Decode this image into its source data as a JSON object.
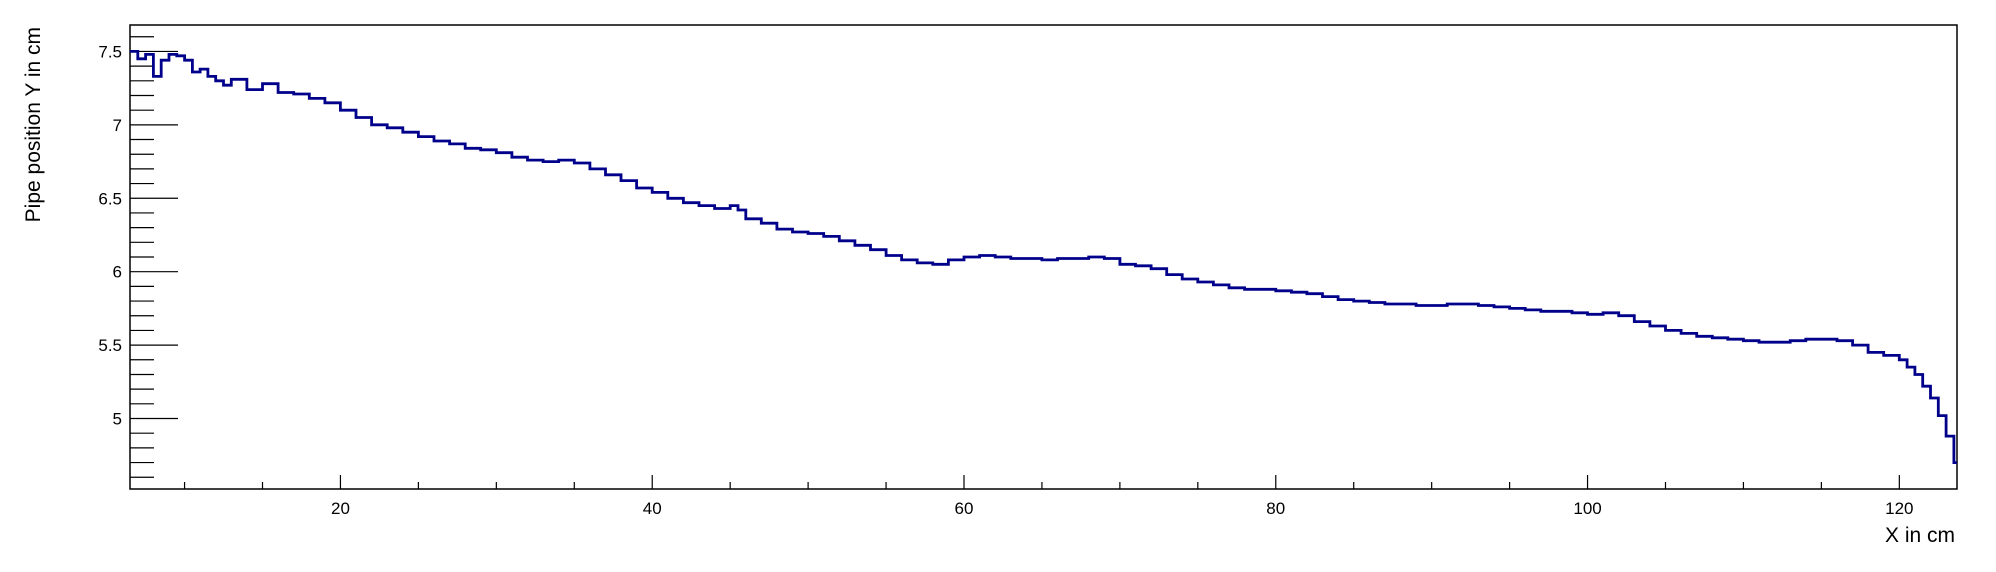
{
  "chart_data": {
    "type": "line",
    "style": "step",
    "title": "",
    "xlabel": "X in cm",
    "ylabel": "Pipe position Y in cm",
    "xlim": [
      6.5,
      123.7
    ],
    "ylim": [
      4.52,
      7.68
    ],
    "x_major_ticks": [
      20,
      40,
      60,
      80,
      100,
      120
    ],
    "x_minor_step": 5,
    "y_major_ticks": [
      5,
      5.5,
      6,
      6.5,
      7,
      7.5
    ],
    "y_minor_step": 0.1,
    "grid": false,
    "legend": "none",
    "line_color": "#00008b",
    "series": [
      {
        "x": [
          6.5,
          7.0,
          7.5,
          8.0,
          8.5,
          9.0,
          9.5,
          10.0,
          10.5,
          11.0,
          11.5,
          12.0,
          12.5,
          13.0,
          14.0,
          15.0,
          16.0,
          17.0,
          18.0,
          19.0,
          20.0,
          21.0,
          22.0,
          23.0,
          24.0,
          25.0,
          26.0,
          27.0,
          28.0,
          29.0,
          30.0,
          31.0,
          32.0,
          33.0,
          34.0,
          35.0,
          36.0,
          37.0,
          38.0,
          39.0,
          40.0,
          41.0,
          42.0,
          43.0,
          44.0,
          45.0,
          45.5,
          46.0,
          47.0,
          48.0,
          49.0,
          50.0,
          51.0,
          52.0,
          53.0,
          54.0,
          55.0,
          56.0,
          57.0,
          58.0,
          59.0,
          60.0,
          61.0,
          62.0,
          63.0,
          64.0,
          65.0,
          66.0,
          67.0,
          68.0,
          69.0,
          70.0,
          71.0,
          72.0,
          73.0,
          74.0,
          75.0,
          76.0,
          77.0,
          78.0,
          79.0,
          80.0,
          81.0,
          82.0,
          83.0,
          84.0,
          85.0,
          86.0,
          87.0,
          88.0,
          89.0,
          90.0,
          91.0,
          92.0,
          93.0,
          94.0,
          95.0,
          96.0,
          97.0,
          98.0,
          99.0,
          100.0,
          101.0,
          102.0,
          103.0,
          104.0,
          105.0,
          106.0,
          107.0,
          108.0,
          109.0,
          110.0,
          111.0,
          112.0,
          113.0,
          114.0,
          115.0,
          116.0,
          117.0,
          118.0,
          119.0,
          120.0,
          120.5,
          121.0,
          121.5,
          122.0,
          122.5,
          123.0,
          123.5
        ],
        "y": [
          7.5,
          7.45,
          7.48,
          7.33,
          7.44,
          7.48,
          7.47,
          7.44,
          7.36,
          7.38,
          7.33,
          7.3,
          7.27,
          7.31,
          7.24,
          7.28,
          7.22,
          7.21,
          7.18,
          7.15,
          7.1,
          7.05,
          7.0,
          6.98,
          6.95,
          6.92,
          6.89,
          6.87,
          6.84,
          6.83,
          6.81,
          6.78,
          6.76,
          6.75,
          6.76,
          6.74,
          6.7,
          6.66,
          6.62,
          6.57,
          6.54,
          6.5,
          6.47,
          6.45,
          6.43,
          6.45,
          6.42,
          6.36,
          6.33,
          6.29,
          6.27,
          6.26,
          6.24,
          6.21,
          6.18,
          6.15,
          6.11,
          6.08,
          6.06,
          6.05,
          6.08,
          6.1,
          6.11,
          6.1,
          6.09,
          6.09,
          6.08,
          6.09,
          6.09,
          6.1,
          6.09,
          6.05,
          6.04,
          6.02,
          5.98,
          5.95,
          5.93,
          5.91,
          5.89,
          5.88,
          5.88,
          5.87,
          5.86,
          5.85,
          5.83,
          5.81,
          5.8,
          5.79,
          5.78,
          5.78,
          5.77,
          5.77,
          5.78,
          5.78,
          5.77,
          5.76,
          5.75,
          5.74,
          5.73,
          5.73,
          5.72,
          5.71,
          5.72,
          5.7,
          5.66,
          5.63,
          5.6,
          5.58,
          5.56,
          5.55,
          5.54,
          5.53,
          5.52,
          5.52,
          5.53,
          5.54,
          5.54,
          5.53,
          5.5,
          5.45,
          5.43,
          5.4,
          5.35,
          5.3,
          5.22,
          5.14,
          5.02,
          4.88,
          4.7
        ]
      }
    ]
  }
}
